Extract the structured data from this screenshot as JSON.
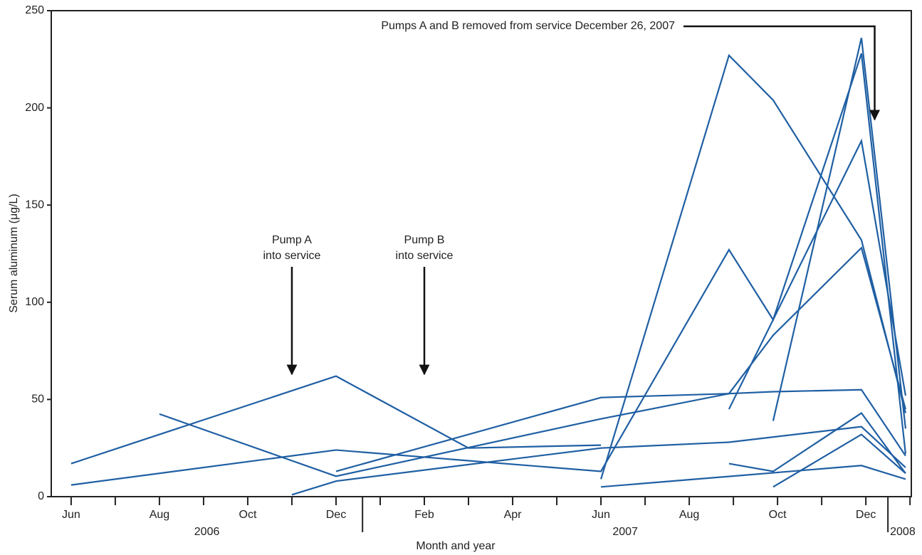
{
  "chart_data": {
    "type": "line",
    "x_label": "Month and year",
    "y_label": "Serum aluminum (μg/L)",
    "color": "#1f5fa3",
    "xlim": [
      -0.45,
      19.03
    ],
    "ylim": [
      0,
      250
    ],
    "yticks": [
      0,
      50,
      100,
      150,
      200,
      250
    ],
    "xticks": [
      {
        "value": 0,
        "label": "Jun"
      },
      {
        "value": 2,
        "label": "Aug"
      },
      {
        "value": 4,
        "label": "Oct"
      },
      {
        "value": 6,
        "label": "Dec"
      },
      {
        "value": 8,
        "label": "Feb"
      },
      {
        "value": 10,
        "label": "Apr"
      },
      {
        "value": 12,
        "label": "Jun"
      },
      {
        "value": 14,
        "label": "Aug"
      },
      {
        "value": 16,
        "label": "Oct"
      },
      {
        "value": 18,
        "label": "Dec"
      }
    ],
    "xminor_ticks": [
      1,
      3,
      5,
      7,
      9,
      11,
      13,
      15,
      17,
      19
    ],
    "years": [
      "2006",
      "2007",
      "2008"
    ],
    "year_dividers": [
      6.6,
      18.5
    ],
    "series": [
      {
        "x": [
          0,
          6,
          9,
          12
        ],
        "values": [
          17,
          62,
          25,
          26.5
        ]
      },
      {
        "x": [
          0,
          6,
          12,
          14.9,
          15.9,
          17.9,
          18.9
        ],
        "values": [
          6,
          24,
          13,
          127,
          91,
          228,
          22
        ]
      },
      {
        "x": [
          2,
          6,
          12,
          14.9,
          15.9,
          17.9,
          18.9
        ],
        "values": [
          42.5,
          10.5,
          40,
          53,
          83,
          128,
          45
        ]
      },
      {
        "x": [
          5,
          6,
          12,
          14.9,
          17.9,
          18.9
        ],
        "values": [
          1,
          8,
          25,
          28,
          36,
          15
        ]
      },
      {
        "x": [
          6,
          12,
          14.9,
          15.9,
          17.9,
          18.9
        ],
        "values": [
          13,
          51,
          53,
          54,
          55,
          21
        ]
      },
      {
        "x": [
          12,
          14.9,
          15.9,
          17.9,
          18.9
        ],
        "values": [
          9,
          227,
          204,
          132,
          43
        ]
      },
      {
        "x": [
          12,
          17.9,
          18.9
        ],
        "values": [
          5,
          16,
          9
        ]
      },
      {
        "x": [
          15.9,
          17.9,
          18.9
        ],
        "values": [
          39,
          236,
          35
        ]
      },
      {
        "x": [
          15.9,
          17.9,
          18.9
        ],
        "values": [
          5,
          32,
          12
        ]
      },
      {
        "x": [
          14.9,
          15.9,
          17.9,
          18.9
        ],
        "values": [
          17,
          13,
          43,
          12
        ]
      },
      {
        "x": [
          14.9,
          17.9,
          18.9
        ],
        "values": [
          45,
          183,
          52
        ]
      }
    ],
    "annotations": [
      {
        "lines": [
          "Pump A",
          "into service"
        ],
        "x": 5,
        "y": 63
      },
      {
        "lines": [
          "Pump B",
          "into service"
        ],
        "x": 8,
        "y": 63
      },
      {
        "lines": [
          "Pumps A and B removed from service December 26, 2007"
        ],
        "x": 18.2,
        "y": 194
      }
    ]
  }
}
